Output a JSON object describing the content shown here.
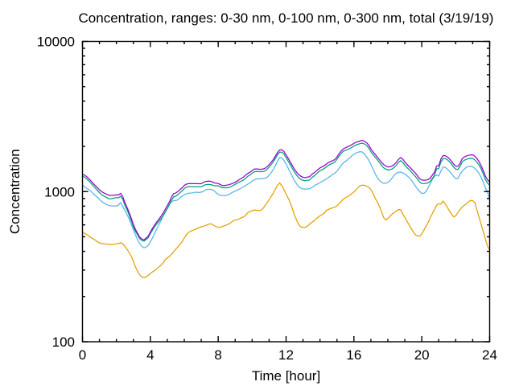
{
  "figure": {
    "title": "Concentration, ranges: 0-30 nm, 0-100 nm, 0-300 nm, total (3/19/19)",
    "xlabel": "Time [hour]",
    "ylabel": "Concentration",
    "background_color": "#ffffff",
    "axis_color": "#000000",
    "text_color": "#000000"
  },
  "chart_data": {
    "type": "line",
    "title": "Concentration, ranges: 0-30 nm, 0-100 nm, 0-300 nm, total (3/19/19)",
    "xlabel": "Time [hour]",
    "ylabel": "Concentration",
    "x_axis": {
      "scale": "linear",
      "min": 0,
      "max": 24,
      "major_ticks": [
        0,
        4,
        8,
        12,
        16,
        20,
        24
      ],
      "major_tick_labels": [
        "0",
        "4",
        "8",
        "12",
        "16",
        "20",
        "24"
      ],
      "minor_tick_step": 1
    },
    "y_axis": {
      "scale": "log",
      "min": 100,
      "max": 10000,
      "major_ticks": [
        100,
        1000,
        10000
      ],
      "major_tick_labels": [
        "100",
        "1000",
        "10000"
      ],
      "minor_ticks": [
        200,
        300,
        400,
        500,
        600,
        700,
        800,
        900,
        2000,
        3000,
        4000,
        5000,
        6000,
        7000,
        8000,
        9000
      ]
    },
    "grid": false,
    "legend_position": "none",
    "x": [
      0.0,
      0.125,
      0.25,
      0.375,
      0.5,
      0.625,
      0.75,
      0.875,
      1.0,
      1.125,
      1.25,
      1.375,
      1.5,
      1.625,
      1.75,
      1.875,
      2.0,
      2.125,
      2.25,
      2.375,
      2.5,
      2.625,
      2.75,
      2.875,
      3.0,
      3.125,
      3.25,
      3.375,
      3.5,
      3.625,
      3.75,
      3.875,
      4.0,
      4.125,
      4.25,
      4.375,
      4.5,
      4.625,
      4.75,
      4.875,
      5.0,
      5.125,
      5.25,
      5.375,
      5.5,
      5.625,
      5.75,
      5.875,
      6.0,
      6.125,
      6.25,
      6.375,
      6.5,
      6.625,
      6.75,
      6.875,
      7.0,
      7.125,
      7.25,
      7.375,
      7.5,
      7.625,
      7.75,
      7.875,
      8.0,
      8.125,
      8.25,
      8.375,
      8.5,
      8.625,
      8.75,
      8.875,
      9.0,
      9.125,
      9.25,
      9.375,
      9.5,
      9.625,
      9.75,
      9.875,
      10.0,
      10.125,
      10.25,
      10.375,
      10.5,
      10.625,
      10.75,
      10.875,
      11.0,
      11.125,
      11.25,
      11.375,
      11.5,
      11.625,
      11.75,
      11.875,
      12.0,
      12.125,
      12.25,
      12.375,
      12.5,
      12.625,
      12.75,
      12.875,
      13.0,
      13.125,
      13.25,
      13.375,
      13.5,
      13.625,
      13.75,
      13.875,
      14.0,
      14.125,
      14.25,
      14.375,
      14.5,
      14.625,
      14.75,
      14.875,
      15.0,
      15.125,
      15.25,
      15.375,
      15.5,
      15.625,
      15.75,
      15.875,
      16.0,
      16.125,
      16.25,
      16.375,
      16.5,
      16.625,
      16.75,
      16.875,
      17.0,
      17.125,
      17.25,
      17.375,
      17.5,
      17.625,
      17.75,
      17.875,
      18.0,
      18.125,
      18.25,
      18.375,
      18.5,
      18.625,
      18.75,
      18.875,
      19.0,
      19.125,
      19.25,
      19.375,
      19.5,
      19.625,
      19.75,
      19.875,
      20.0,
      20.125,
      20.25,
      20.375,
      20.5,
      20.625,
      20.75,
      20.875,
      21.0,
      21.125,
      21.25,
      21.375,
      21.5,
      21.625,
      21.75,
      21.875,
      22.0,
      22.125,
      22.25,
      22.375,
      22.5,
      22.625,
      22.75,
      22.875,
      23.0,
      23.125,
      23.25,
      23.375,
      23.5,
      23.625,
      23.75,
      23.875,
      24.0
    ],
    "series": [
      {
        "name": "0-30 nm",
        "color": "#E69F00",
        "values": [
          537,
          527,
          517,
          507,
          494,
          485,
          476,
          464,
          455,
          451,
          449,
          447,
          446,
          445,
          444,
          447,
          449,
          451,
          457,
          449,
          431,
          413,
          392,
          371,
          344,
          314,
          294,
          279,
          270,
          267,
          270,
          277,
          285,
          292,
          298,
          306,
          315,
          323,
          334,
          352,
          361,
          370,
          383,
          399,
          413,
          428,
          445,
          464,
          490,
          517,
          533,
          544,
          552,
          560,
          568,
          576,
          583,
          587,
          594,
          602,
          610,
          608,
          594,
          584,
          578,
          579,
          585,
          593,
          600,
          609,
          622,
          638,
          647,
          650,
          658,
          671,
          678,
          700,
          724,
          736,
          746,
          754,
          751,
          748,
          749,
          768,
          802,
          842,
          882,
          928,
          978,
          1040,
          1104,
          1139,
          1096,
          1029,
          964,
          902,
          842,
          766,
          696,
          645,
          602,
          582,
          577,
          577,
          588,
          605,
          623,
          635,
          657,
          672,
          690,
          702,
          716,
          750,
          761,
          772,
          781,
          788,
          803,
          829,
          859,
          889,
          910,
          926,
          945,
          969,
          997,
          1028,
          1067,
          1097,
          1104,
          1100,
          1087,
          1067,
          1032,
          974,
          903,
          856,
          799,
          734,
          673,
          647,
          662,
          685,
          708,
          727,
          742,
          759,
          758,
          711,
          672,
          634,
          601,
          568,
          538,
          516,
          506,
          505,
          522,
          554,
          588,
          623,
          670,
          716,
          758,
          813,
          831,
          823,
          865,
          830,
          788,
          744,
          710,
          679,
          688,
          723,
          758,
          788,
          808,
          829,
          854,
          873,
          871,
          845,
          752,
          676,
          605,
          540,
          483,
          432,
          408
        ]
      },
      {
        "name": "0-100 nm",
        "color": "#56B4E9",
        "values": [
          1105,
          1077,
          1052,
          1030,
          1004,
          971,
          943,
          917,
          887,
          859,
          841,
          825,
          813,
          805,
          803,
          802,
          802,
          812,
          846,
          796,
          748,
          703,
          659,
          604,
          559,
          514,
          477,
          450,
          431,
          423,
          426,
          438,
          463,
          492,
          525,
          563,
          602,
          640,
          691,
          728,
          772,
          825,
          856,
          870,
          871,
          882,
          910,
          931,
          952,
          966,
          976,
          976,
          981,
          990,
          989,
          986,
          992,
          1002,
          1026,
          1034,
          1036,
          1032,
          1017,
          983,
          958,
          944,
          941,
          939,
          944,
          955,
          975,
          993,
          1007,
          1023,
          1040,
          1057,
          1077,
          1099,
          1121,
          1143,
          1170,
          1197,
          1213,
          1218,
          1219,
          1222,
          1227,
          1243,
          1285,
          1337,
          1404,
          1494,
          1599,
          1687,
          1679,
          1612,
          1525,
          1427,
          1343,
          1256,
          1179,
          1126,
          1077,
          1053,
          1042,
          1039,
          1041,
          1045,
          1060,
          1084,
          1108,
          1127,
          1147,
          1169,
          1191,
          1214,
          1241,
          1270,
          1300,
          1328,
          1364,
          1430,
          1498,
          1551,
          1587,
          1629,
          1677,
          1725,
          1776,
          1806,
          1829,
          1844,
          1832,
          1780,
          1700,
          1617,
          1518,
          1415,
          1316,
          1243,
          1188,
          1153,
          1136,
          1137,
          1148,
          1183,
          1230,
          1287,
          1325,
          1346,
          1346,
          1332,
          1310,
          1277,
          1242,
          1196,
          1141,
          1087,
          1041,
          1001,
          972,
          974,
          1001,
          1063,
          1129,
          1208,
          1262,
          1289,
          1269,
          1374,
          1455,
          1451,
          1414,
          1371,
          1320,
          1263,
          1222,
          1217,
          1302,
          1361,
          1413,
          1450,
          1471,
          1475,
          1461,
          1427,
          1380,
          1321,
          1243,
          1153,
          1058,
          999,
          885
        ]
      },
      {
        "name": "0-300 nm",
        "color": "#009E73",
        "values": [
          1265,
          1247,
          1216,
          1176,
          1137,
          1096,
          1057,
          1019,
          984,
          954,
          935,
          919,
          902,
          893,
          899,
          906,
          912,
          908,
          933,
          888,
          811,
          755,
          699,
          640,
          582,
          542,
          514,
          486,
          473,
          468,
          480,
          493,
          525,
          553,
          583,
          609,
          634,
          659,
          689,
          728,
          771,
          817,
          878,
          923,
          932,
          954,
          984,
          1011,
          1047,
          1070,
          1078,
          1078,
          1076,
          1078,
          1078,
          1076,
          1075,
          1096,
          1111,
          1115,
          1116,
          1109,
          1094,
          1094,
          1093,
          1075,
          1061,
          1062,
          1060,
          1064,
          1078,
          1097,
          1118,
          1139,
          1159,
          1175,
          1194,
          1230,
          1266,
          1291,
          1324,
          1355,
          1359,
          1359,
          1356,
          1358,
          1372,
          1406,
          1456,
          1515,
          1578,
          1668,
          1762,
          1831,
          1831,
          1778,
          1683,
          1594,
          1509,
          1423,
          1346,
          1285,
          1239,
          1205,
          1189,
          1180,
          1191,
          1192,
          1233,
          1263,
          1300,
          1342,
          1377,
          1399,
          1424,
          1461,
          1499,
          1523,
          1543,
          1576,
          1640,
          1723,
          1794,
          1854,
          1883,
          1906,
          1934,
          1967,
          2011,
          2045,
          2065,
          2090,
          2099,
          2074,
          2027,
          1950,
          1843,
          1765,
          1697,
          1629,
          1561,
          1494,
          1441,
          1411,
          1393,
          1398,
          1415,
          1449,
          1498,
          1562,
          1607,
          1567,
          1499,
          1446,
          1404,
          1357,
          1304,
          1261,
          1209,
          1157,
          1133,
          1131,
          1135,
          1143,
          1171,
          1226,
          1286,
          1417,
          1424,
          1573,
          1655,
          1661,
          1631,
          1586,
          1524,
          1456,
          1410,
          1403,
          1465,
          1573,
          1616,
          1639,
          1657,
          1666,
          1664,
          1625,
          1570,
          1503,
          1414,
          1310,
          1205,
          1138,
          1104
        ]
      },
      {
        "name": "total",
        "color": "#9400D3",
        "values": [
          1304,
          1286,
          1257,
          1219,
          1178,
          1135,
          1097,
          1062,
          1028,
          1000,
          981,
          966,
          952,
          942,
          943,
          946,
          952,
          949,
          975,
          927,
          844,
          785,
          726,
          664,
          603,
          559,
          527,
          497,
          483,
          477,
          490,
          505,
          538,
          568,
          599,
          627,
          654,
          683,
          719,
          761,
          805,
          855,
          920,
          969,
          978,
          1001,
          1031,
          1060,
          1098,
          1121,
          1129,
          1130,
          1129,
          1130,
          1130,
          1128,
          1128,
          1152,
          1167,
          1172,
          1174,
          1164,
          1144,
          1138,
          1132,
          1113,
          1097,
          1099,
          1103,
          1111,
          1122,
          1137,
          1155,
          1177,
          1203,
          1226,
          1253,
          1289,
          1321,
          1345,
          1380,
          1413,
          1415,
          1411,
          1407,
          1412,
          1428,
          1461,
          1511,
          1571,
          1635,
          1725,
          1822,
          1894,
          1898,
          1848,
          1754,
          1663,
          1574,
          1486,
          1407,
          1344,
          1299,
          1264,
          1245,
          1235,
          1250,
          1254,
          1297,
          1327,
          1362,
          1402,
          1437,
          1462,
          1488,
          1525,
          1561,
          1586,
          1607,
          1638,
          1701,
          1787,
          1862,
          1925,
          1958,
          1986,
          2017,
          2051,
          2096,
          2129,
          2151,
          2180,
          2190,
          2163,
          2113,
          2036,
          1924,
          1841,
          1770,
          1699,
          1630,
          1566,
          1514,
          1481,
          1459,
          1464,
          1481,
          1516,
          1568,
          1637,
          1685,
          1645,
          1575,
          1516,
          1470,
          1423,
          1372,
          1327,
          1271,
          1218,
          1194,
          1191,
          1193,
          1201,
          1231,
          1288,
          1348,
          1482,
          1489,
          1646,
          1733,
          1736,
          1702,
          1655,
          1593,
          1524,
          1477,
          1472,
          1538,
          1652,
          1699,
          1724,
          1743,
          1754,
          1758,
          1720,
          1660,
          1585,
          1486,
          1376,
          1267,
          1198,
          1156
        ]
      }
    ]
  }
}
